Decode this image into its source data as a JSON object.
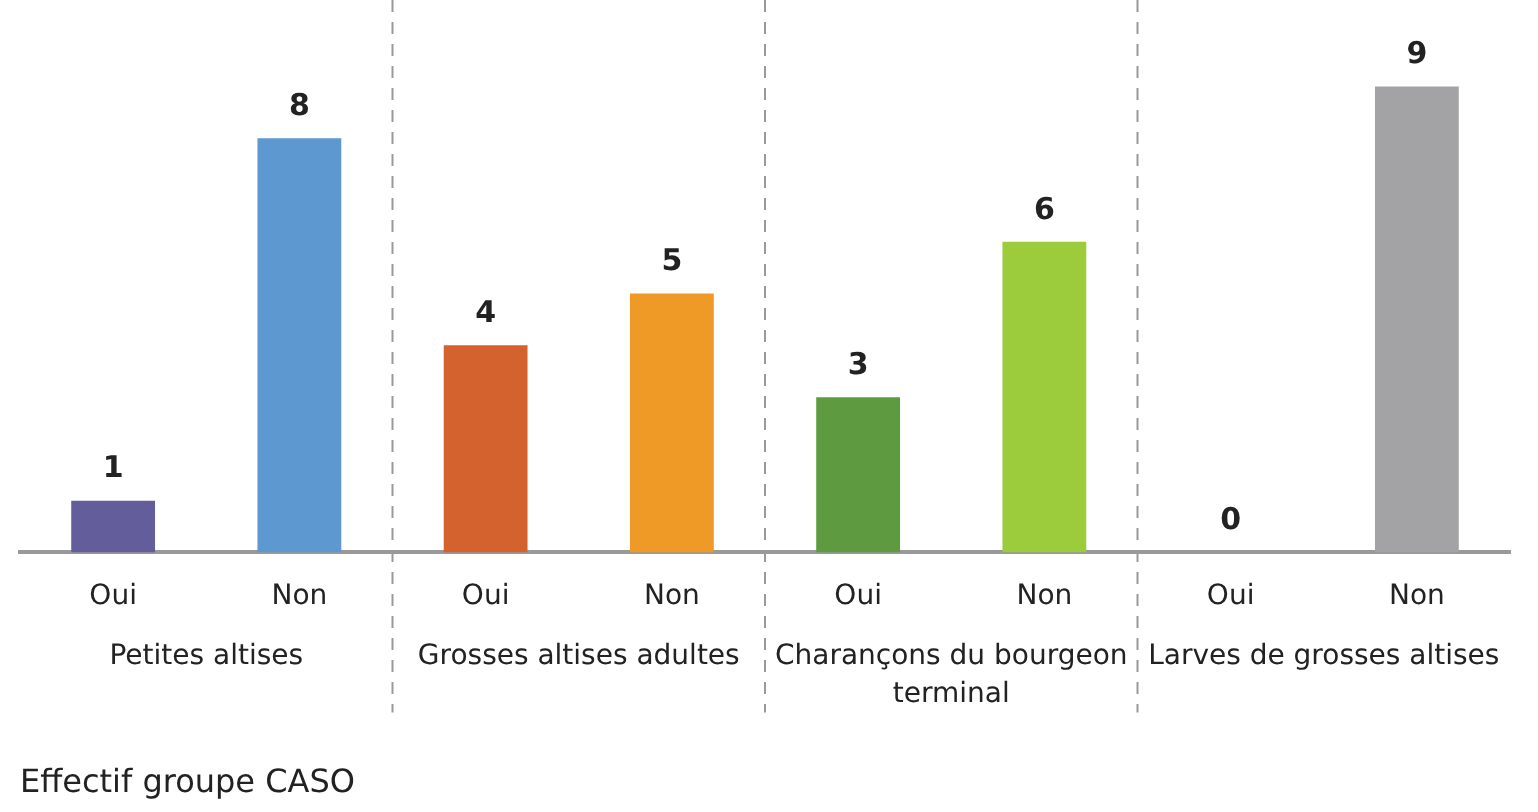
{
  "chart_data": {
    "type": "bar",
    "categories": [
      "Oui",
      "Non",
      "Oui",
      "Non",
      "Oui",
      "Non",
      "Oui",
      "Non"
    ],
    "values": [
      1,
      8,
      4,
      5,
      3,
      6,
      0,
      9
    ],
    "colors": [
      "#635e9b",
      "#5e98d0",
      "#d4622f",
      "#ef9a26",
      "#5e9a3f",
      "#9ccb3b",
      "#8a8a8d",
      "#a3a3a6"
    ],
    "data_labels": true,
    "grid": false,
    "legend": false,
    "annotations": [
      "Petites altises",
      "Grosses altises adultes",
      "Charançons du bourgeon terminal",
      "Larves de grosses altises",
      "Effectif groupe CASO"
    ]
  }
}
